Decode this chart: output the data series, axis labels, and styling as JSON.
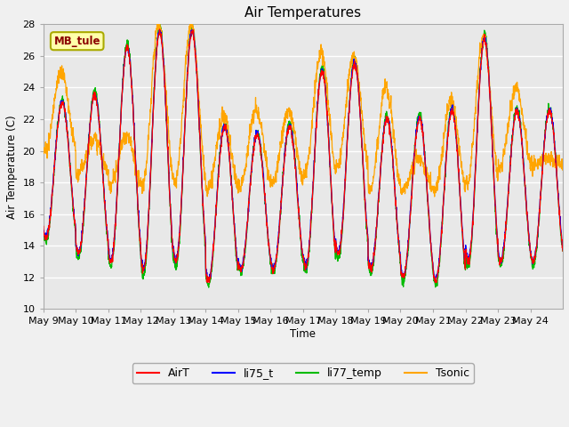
{
  "title": "Air Temperatures",
  "ylabel": "Air Temperature (C)",
  "xlabel": "Time",
  "ylim": [
    10,
    28
  ],
  "annotation_text": "MB_tule",
  "annotation_color": "#8B0000",
  "annotation_bg": "#FFFFAA",
  "annotation_border": "#AAAA00",
  "series_colors": {
    "AirT": "#FF0000",
    "li75_t": "#0000FF",
    "li77_temp": "#00BB00",
    "Tsonic": "#FFA500"
  },
  "series_names": [
    "AirT",
    "li75_t",
    "li77_temp",
    "Tsonic"
  ],
  "x_tick_labels": [
    "May 9",
    "May 10",
    "May 11",
    "May 12",
    "May 13",
    "May 14",
    "May 15",
    "May 16",
    "May 17",
    "May 18",
    "May 19",
    "May 20",
    "May 21",
    "May 22",
    "May 23",
    "May 24"
  ],
  "yticks": [
    10,
    12,
    14,
    16,
    18,
    20,
    22,
    24,
    26,
    28
  ],
  "fig_facecolor": "#F0F0F0",
  "ax_facecolor": "#E8E8E8",
  "grid_color": "#FFFFFF",
  "day_peaks": [
    23.0,
    23.5,
    26.5,
    27.5,
    27.5,
    21.5,
    21.0,
    21.5,
    25.0,
    25.5,
    22.0,
    22.0,
    22.5,
    27.0,
    22.5,
    22.5
  ],
  "day_mins": [
    14.5,
    13.5,
    13.0,
    12.5,
    13.0,
    11.8,
    12.5,
    12.5,
    12.7,
    13.5,
    12.5,
    12.0,
    11.8,
    13.0,
    13.0,
    13.0
  ],
  "sonic_peaks": [
    25.0,
    20.8,
    21.0,
    28.0,
    28.0,
    22.2,
    22.5,
    22.5,
    26.3,
    26.0,
    24.0,
    19.5,
    23.2,
    27.2,
    24.0,
    19.5
  ],
  "sonic_mins": [
    20.0,
    18.5,
    17.8,
    17.8,
    18.0,
    17.5,
    17.8,
    18.0,
    18.5,
    19.0,
    17.5,
    17.5,
    17.5,
    18.0,
    19.0,
    19.0
  ]
}
